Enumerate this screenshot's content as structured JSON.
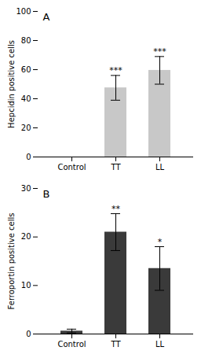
{
  "chart_data": [
    {
      "type": "bar",
      "title": "A",
      "categories": [
        "Control",
        "TT",
        "LL"
      ],
      "values": [
        0,
        47.5,
        59.5
      ],
      "errors": [
        0,
        8.5,
        9.5
      ],
      "significance": [
        null,
        "***",
        "***"
      ],
      "color": "#c8c8c8",
      "ylabel": "Hepcidin positive cells",
      "ylim": [
        0,
        100
      ],
      "yticks": [
        0,
        20,
        40,
        60,
        80,
        100
      ]
    },
    {
      "type": "bar",
      "title": "B",
      "categories": [
        "Control",
        "TT",
        "LL"
      ],
      "values": [
        0.6,
        21.0,
        13.5
      ],
      "errors": [
        0.4,
        3.8,
        4.5
      ],
      "significance": [
        null,
        "**",
        "*"
      ],
      "color": "#3a3a3a",
      "ylabel": "Ferroportin positive cells",
      "ylim": [
        0,
        30
      ],
      "yticks": [
        0,
        10,
        20,
        30
      ]
    }
  ]
}
